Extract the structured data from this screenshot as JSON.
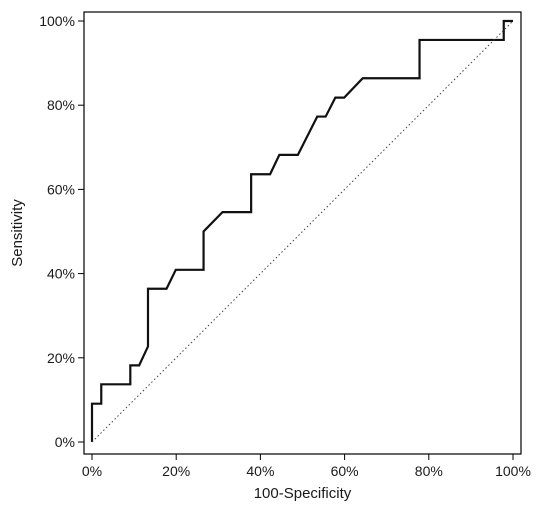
{
  "chart_data": {
    "type": "line",
    "title": "",
    "xlabel": "100-Specificity",
    "ylabel": "Sensitivity",
    "xlim": [
      0,
      100
    ],
    "ylim": [
      0,
      100
    ],
    "x_ticks": [
      0,
      20,
      40,
      60,
      80,
      100
    ],
    "y_ticks": [
      0,
      20,
      40,
      60,
      80,
      100
    ],
    "x_tick_labels": [
      "0%",
      "20%",
      "40%",
      "60%",
      "80%",
      "100%"
    ],
    "y_tick_labels": [
      "0%",
      "20%",
      "40%",
      "60%",
      "80%",
      "100%"
    ],
    "grid": false,
    "legend": "none",
    "series": [
      {
        "style": "solid",
        "color": "#111111",
        "x": [
          0,
          0,
          2.2,
          2.2,
          9.1,
          9.1,
          11.2,
          13.3,
          13.3,
          17.7,
          19.9,
          26.5,
          26.5,
          31.0,
          37.8,
          37.8,
          42.3,
          44.5,
          48.9,
          53.5,
          55.5,
          57.8,
          59.9,
          64.3,
          77.8,
          77.8,
          97.8,
          97.8,
          100
        ],
        "y": [
          0,
          9.1,
          9.1,
          13.7,
          13.7,
          18.2,
          18.2,
          22.7,
          36.4,
          36.4,
          40.9,
          40.9,
          50.0,
          54.6,
          54.6,
          63.6,
          63.6,
          68.2,
          68.2,
          77.3,
          77.3,
          81.8,
          81.8,
          86.4,
          86.4,
          95.5,
          95.5,
          100,
          100
        ]
      },
      {
        "style": "dotted",
        "color": "#444444",
        "x": [
          0,
          100
        ],
        "y": [
          0,
          100
        ]
      }
    ]
  }
}
